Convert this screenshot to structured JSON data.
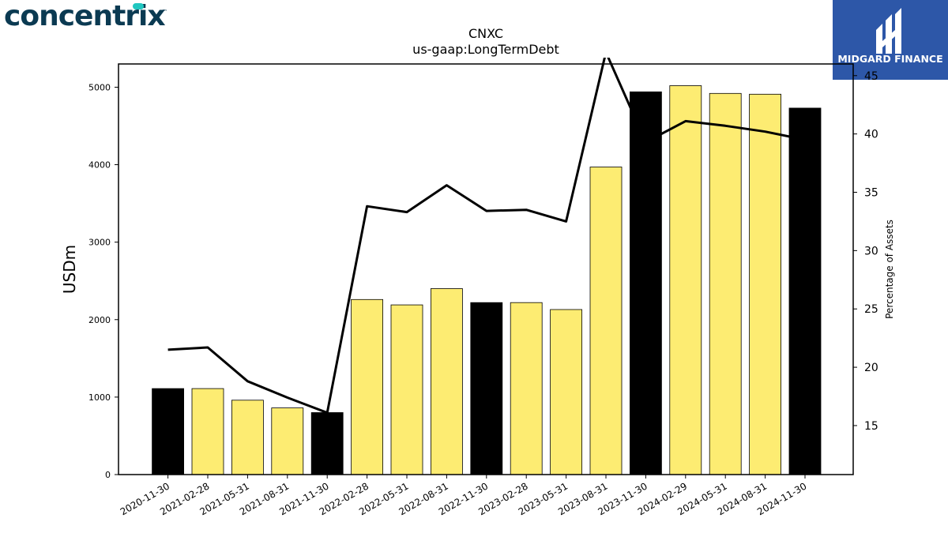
{
  "brand": {
    "left_logo": "concentrix",
    "left_logo_tm": "™",
    "right_logo": "MIDGARD FINANCE"
  },
  "chart_data": {
    "type": "bar",
    "title": "CNXC",
    "subtitle": "us-gaap:LongTermDebt",
    "ylabel": "USDm",
    "y2label": "Percentage of Assets",
    "ylim": [
      0,
      5300
    ],
    "y2lim": [
      10.8,
      46
    ],
    "yticks": [
      0,
      1000,
      2000,
      3000,
      4000,
      5000
    ],
    "y2ticks": [
      15,
      20,
      25,
      30,
      35,
      40,
      45
    ],
    "categories": [
      "2020-11-30",
      "2021-02-28",
      "2021-05-31",
      "2021-08-31",
      "2021-11-30",
      "2022-02-28",
      "2022-05-31",
      "2022-08-31",
      "2022-11-30",
      "2023-02-28",
      "2023-05-31",
      "2023-08-31",
      "2023-11-30",
      "2024-02-29",
      "2024-05-31",
      "2024-08-31",
      "2024-11-30"
    ],
    "series": [
      {
        "kind": "bar",
        "values": [
          1110,
          1110,
          960,
          860,
          800,
          2260,
          2190,
          2400,
          2220,
          2220,
          2130,
          3970,
          4940,
          5020,
          4920,
          4910,
          4730
        ],
        "fiscal_year_end": [
          true,
          false,
          false,
          false,
          true,
          false,
          false,
          false,
          true,
          false,
          false,
          false,
          true,
          false,
          false,
          false,
          true
        ]
      },
      {
        "kind": "line",
        "axis": "right",
        "values": [
          21.5,
          21.7,
          18.8,
          17.4,
          16.1,
          33.8,
          33.3,
          35.6,
          33.4,
          33.5,
          32.5,
          47.0,
          39.3,
          41.1,
          40.7,
          40.2,
          39.5
        ]
      }
    ],
    "colors": {
      "bar_fiscal": "#000000",
      "bar_quarter": "#fdec72",
      "line": "#000000"
    }
  }
}
